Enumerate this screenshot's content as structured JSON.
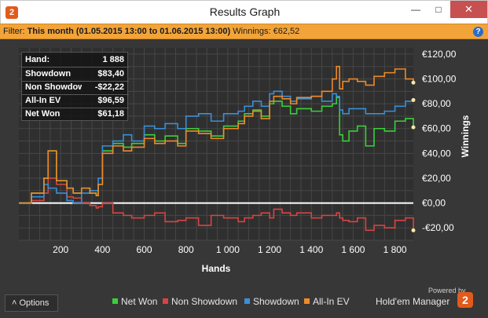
{
  "window": {
    "title": "Results Graph",
    "app_icon": "2",
    "minimize_glyph": "—",
    "maximize_glyph": "□",
    "close_glyph": "✕"
  },
  "filter": {
    "label": "Filter:",
    "period": "This month (01.05.2015 13:00 to 01.06.2015 13:00)",
    "winnings_text": "Winnings: €62,52",
    "help_glyph": "?"
  },
  "summary": [
    {
      "label": "Hand:",
      "value": "1 888"
    },
    {
      "label": "Showdown",
      "value": "$83,40"
    },
    {
      "label": "Non Showdown",
      "value": "-$22,22"
    },
    {
      "label": "All-In EV",
      "value": "$96,59"
    },
    {
      "label": "Net Won",
      "value": "$61,18"
    }
  ],
  "footer": {
    "options_label": "Options",
    "options_glyph": "˄",
    "powered_by": "Powered by",
    "brand": "Hold'em Manager",
    "brand_logo": "2"
  },
  "colors": {
    "net_won": "#3ad03a",
    "non_showdown": "#d84444",
    "showdown": "#3a8fd8",
    "all_in_ev": "#ee8a2a",
    "zero_line": "#ffffff",
    "plot_bg": "#2f2f2f",
    "grid": "#474747"
  },
  "chart_data": {
    "type": "line",
    "xlabel": "Hands",
    "ylabel": "Winnings",
    "xlim": [
      0,
      1888
    ],
    "ylim": [
      -30,
      125
    ],
    "x_ticks": [
      200,
      400,
      600,
      800,
      1000,
      1200,
      1400,
      1600,
      1800
    ],
    "x_tick_labels": [
      "200",
      "400",
      "600",
      "800",
      "1 000",
      "1 200",
      "1 400",
      "1 600",
      "1 800"
    ],
    "y_ticks": [
      -20,
      0,
      20,
      40,
      60,
      80,
      100,
      120
    ],
    "y_tick_labels": [
      "-€20,00",
      "€0,00",
      "€20,00",
      "€40,00",
      "€60,00",
      "€80,00",
      "€100,00",
      "€120,00"
    ],
    "grid": true,
    "legend_position": "bottom",
    "x": [
      0,
      60,
      120,
      140,
      180,
      230,
      260,
      300,
      340,
      370,
      380,
      400,
      450,
      500,
      540,
      600,
      650,
      700,
      760,
      800,
      860,
      920,
      980,
      1050,
      1080,
      1120,
      1160,
      1200,
      1220,
      1260,
      1300,
      1330,
      1400,
      1450,
      1500,
      1520,
      1535,
      1550,
      1580,
      1620,
      1660,
      1700,
      1750,
      1800,
      1850,
      1888
    ],
    "series": [
      {
        "name": "Net Won",
        "values": [
          0,
          8,
          20,
          42,
          18,
          12,
          8,
          12,
          8,
          6,
          15,
          42,
          48,
          45,
          48,
          55,
          50,
          54,
          48,
          60,
          58,
          54,
          62,
          66,
          72,
          75,
          70,
          80,
          82,
          78,
          72,
          76,
          74,
          78,
          80,
          85,
          55,
          50,
          58,
          62,
          46,
          60,
          58,
          66,
          68,
          61
        ]
      },
      {
        "name": "Non Showdown",
        "values": [
          0,
          2,
          8,
          20,
          15,
          5,
          4,
          0,
          -2,
          -4,
          -3,
          0,
          -8,
          -10,
          -12,
          -10,
          -8,
          -15,
          -14,
          -12,
          -18,
          -10,
          -12,
          -15,
          -12,
          -10,
          -8,
          -12,
          -5,
          -8,
          -10,
          -8,
          -12,
          -10,
          -10,
          -8,
          -12,
          -14,
          -15,
          -12,
          -22,
          -18,
          -20,
          -14,
          -12,
          -22
        ]
      },
      {
        "name": "Showdown",
        "values": [
          0,
          5,
          15,
          12,
          8,
          2,
          0,
          8,
          10,
          10,
          20,
          46,
          50,
          55,
          50,
          62,
          60,
          64,
          60,
          70,
          72,
          66,
          72,
          74,
          78,
          82,
          78,
          88,
          90,
          86,
          82,
          84,
          86,
          82,
          88,
          86,
          75,
          72,
          76,
          76,
          72,
          72,
          74,
          78,
          82,
          83
        ]
      },
      {
        "name": "All-In EV",
        "values": [
          0,
          8,
          20,
          42,
          18,
          12,
          8,
          12,
          8,
          6,
          15,
          40,
          46,
          42,
          45,
          52,
          48,
          50,
          46,
          58,
          56,
          52,
          60,
          64,
          70,
          74,
          68,
          82,
          86,
          84,
          80,
          85,
          86,
          90,
          100,
          110,
          92,
          98,
          100,
          98,
          95,
          102,
          105,
          108,
          100,
          97
        ]
      }
    ]
  }
}
